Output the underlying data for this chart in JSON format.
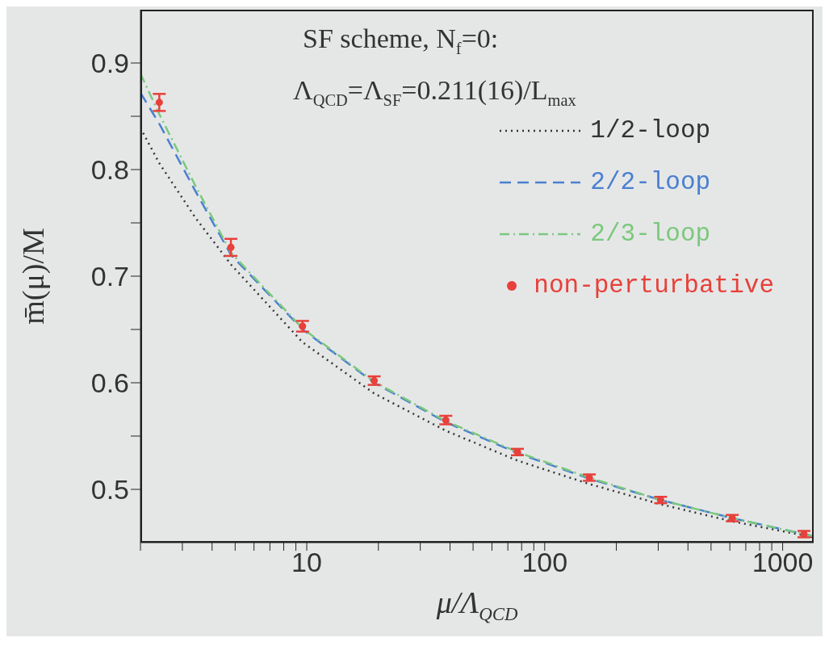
{
  "chart_data": {
    "type": "line",
    "xlabel": "μ/Λ$_{QCD}$",
    "ylabel": "m̄(μ)/M",
    "annotations": [
      "SF scheme, N$_{f}$=0:",
      "Λ$_{QCD}$=Λ$_{SF}$=0.211(16)/L$_{max}$"
    ],
    "log": "x",
    "xlim": [
      2,
      1350
    ],
    "ylim": [
      0.45,
      0.95
    ],
    "xticks": [
      {
        "value": 2,
        "label": null
      },
      {
        "value": 3,
        "label": null
      },
      {
        "value": 4,
        "label": null
      },
      {
        "value": 5,
        "label": null
      },
      {
        "value": 6,
        "label": null
      },
      {
        "value": 7,
        "label": null
      },
      {
        "value": 8,
        "label": null
      },
      {
        "value": 9,
        "label": null
      },
      10,
      {
        "value": 20,
        "label": null
      },
      {
        "value": 30,
        "label": null
      },
      {
        "value": 40,
        "label": null
      },
      {
        "value": 50,
        "label": null
      },
      {
        "value": 60,
        "label": null
      },
      {
        "value": 70,
        "label": null
      },
      {
        "value": 80,
        "label": null
      },
      {
        "value": 90,
        "label": null
      },
      100,
      {
        "value": 200,
        "label": null
      },
      {
        "value": 300,
        "label": null
      },
      {
        "value": 400,
        "label": null
      },
      {
        "value": 500,
        "label": null
      },
      {
        "value": 600,
        "label": null
      },
      {
        "value": 700,
        "label": null
      },
      {
        "value": 800,
        "label": null
      },
      {
        "value": 900,
        "label": null
      },
      1000
    ],
    "yticks": [
      {
        "value": 0.5,
        "label": "0.5"
      },
      {
        "value": 0.55,
        "label": null
      },
      {
        "value": 0.6,
        "label": "0.6"
      },
      {
        "value": 0.65,
        "label": null
      },
      {
        "value": 0.7,
        "label": "0.7"
      },
      {
        "value": 0.75,
        "label": null
      },
      {
        "value": 0.8,
        "label": "0.8"
      },
      {
        "value": 0.85,
        "label": null
      },
      {
        "value": 0.9,
        "label": "0.9"
      }
    ],
    "grid": false,
    "legend": "top right",
    "series": [
      {
        "name": "1/2-loop",
        "color": "#333333",
        "line_style": "dotted",
        "marker": "none",
        "x": [
          2,
          2.4,
          3.4,
          4.8,
          9.6,
          19.2,
          38.4,
          76.8,
          154,
          307,
          614,
          1350
        ],
        "values": [
          0.839,
          0.806,
          0.755,
          0.711,
          0.638,
          0.59,
          0.555,
          0.527,
          0.505,
          0.486,
          0.47,
          0.455
        ]
      },
      {
        "name": "2/2-loop",
        "color": "#4a7fd0",
        "line_style": "dashed",
        "marker": "none",
        "x": [
          2,
          2.4,
          3.4,
          4.8,
          9.6,
          19.2,
          38.4,
          76.8,
          154,
          307,
          614,
          1350
        ],
        "values": [
          0.872,
          0.843,
          0.78,
          0.72,
          0.65,
          0.6,
          0.563,
          0.534,
          0.51,
          0.49,
          0.473,
          0.456
        ]
      },
      {
        "name": "2/3-loop",
        "color": "#7cc87c",
        "line_style": "dashdot",
        "marker": "none",
        "x": [
          2,
          2.4,
          3.4,
          4.8,
          9.6,
          19.2,
          38.4,
          76.8,
          154,
          307,
          614,
          1350
        ],
        "values": [
          0.89,
          0.852,
          0.785,
          0.722,
          0.651,
          0.601,
          0.564,
          0.535,
          0.511,
          0.49,
          0.473,
          0.456
        ]
      },
      {
        "name": "non-perturbative",
        "type": "scatter",
        "color": "#e8403a",
        "marker": "circle",
        "x": [
          2.4,
          4.8,
          9.6,
          19.2,
          38.4,
          76.8,
          154,
          307,
          614,
          1229
        ],
        "values": [
          0.863,
          0.727,
          0.653,
          0.602,
          0.565,
          0.535,
          0.511,
          0.49,
          0.473,
          0.458
        ],
        "errors": [
          0.008,
          0.008,
          0.005,
          0.004,
          0.004,
          0.003,
          0.003,
          0.003,
          0.003,
          0.003
        ]
      }
    ]
  }
}
